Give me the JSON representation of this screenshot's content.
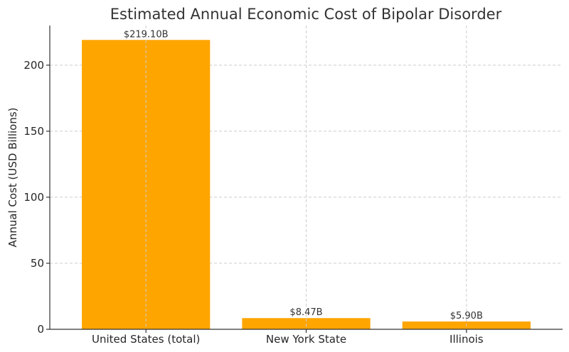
{
  "chart_data": {
    "type": "bar",
    "title": "Estimated Annual Economic Cost of Bipolar Disorder",
    "xlabel": "",
    "ylabel": "Annual Cost (USD Billions)",
    "categories": [
      "United States (total)",
      "New York State",
      "Illinois"
    ],
    "values": [
      219.1,
      8.47,
      5.9
    ],
    "data_labels": [
      "$219.10B",
      "$8.47B",
      "$5.90B"
    ],
    "ylim": [
      0,
      230
    ],
    "yticks": [
      0,
      50,
      100,
      150,
      200
    ],
    "grid": true,
    "bar_color": "#FFA500"
  }
}
